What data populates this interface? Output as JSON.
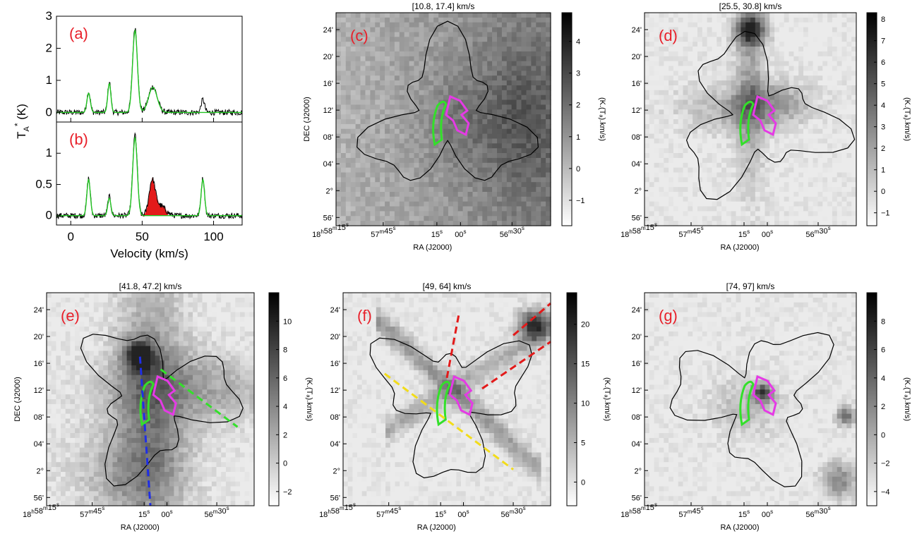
{
  "figure": {
    "panel_labels": [
      "(a)",
      "(b)",
      "(c)",
      "(d)",
      "(e)",
      "(f)",
      "(g)"
    ],
    "spectrum_ylabel": "T",
    "spectrum_ylabel_sub": "A",
    "spectrum_ylabel_sup": "*",
    "spectrum_ylabel_unit": "(K)",
    "spectrum_xlabel": "Velocity (km/s)",
    "ra_label": "RA (J2000)",
    "dec_label": "DEC (J2000)",
    "cbar_label": "(K.(Tₐ).km/s)",
    "ra_ticks": [
      "18h58m15s",
      "57m45s",
      "15s",
      "00s",
      "56m30s"
    ],
    "dec_ticks": [
      "24'",
      "20'",
      "16'",
      "12'",
      "08'",
      "04'",
      "2°",
      "56'"
    ]
  },
  "chart_data": [
    {
      "id": "a",
      "type": "line",
      "x_label": "Velocity (km/s)",
      "y_label": "TA* (K)",
      "xlim": [
        -10,
        120
      ],
      "ylim": [
        -0.3,
        3
      ],
      "x_ticks": [
        0,
        50,
        100
      ],
      "y_ticks": [
        0,
        1,
        2,
        3
      ],
      "series": [
        {
          "color": "#000000",
          "peaks": [
            {
              "v": 12.5,
              "amp": 0.65,
              "width": 1.2
            },
            {
              "v": 27.0,
              "amp": 0.95,
              "width": 1.1
            },
            {
              "v": 45.0,
              "amp": 2.65,
              "width": 1.7
            },
            {
              "v": 57.5,
              "amp": 0.8,
              "width": 3.0
            },
            {
              "v": 92.5,
              "amp": 0.4,
              "width": 1.2
            }
          ]
        },
        {
          "color": "#22c422",
          "peaks": [
            {
              "v": 12.5,
              "amp": 0.6,
              "width": 1.2
            },
            {
              "v": 27.0,
              "amp": 0.9,
              "width": 1.1
            },
            {
              "v": 45.0,
              "amp": 2.55,
              "width": 1.7
            },
            {
              "v": 57.5,
              "amp": 0.78,
              "width": 3.0
            }
          ]
        }
      ]
    },
    {
      "id": "b",
      "type": "line",
      "x_label": "Velocity (km/s)",
      "xlim": [
        -10,
        120
      ],
      "ylim": [
        -0.15,
        1.5
      ],
      "x_ticks": [
        0,
        50,
        100
      ],
      "y_ticks": [
        0,
        0.5,
        1
      ],
      "series": [
        {
          "color": "#000000",
          "peaks": [
            {
              "v": 12.5,
              "amp": 0.6,
              "width": 1.2
            },
            {
              "v": 27.0,
              "amp": 0.3,
              "width": 1.1
            },
            {
              "v": 45.0,
              "amp": 1.3,
              "width": 1.6
            },
            {
              "v": 57.0,
              "amp": 0.55,
              "width": 2.2
            },
            {
              "v": 63.0,
              "amp": 0.15,
              "width": 3.5
            },
            {
              "v": 92.5,
              "amp": 0.6,
              "width": 1.2
            }
          ]
        },
        {
          "color": "#22c422",
          "peaks": [
            {
              "v": 12.5,
              "amp": 0.58,
              "width": 1.2
            },
            {
              "v": 27.0,
              "amp": 0.28,
              "width": 1.1
            },
            {
              "v": 45.0,
              "amp": 1.25,
              "width": 1.6
            },
            {
              "v": 92.5,
              "amp": 0.58,
              "width": 1.2
            }
          ]
        }
      ],
      "shaded_range": [
        49,
        68
      ]
    },
    {
      "id": "c",
      "type": "heatmap",
      "title": "[10.8, 17.4] km/s",
      "cbar_ticks": [
        -1,
        0,
        1,
        2,
        3,
        4
      ],
      "cbar_range": [
        -1.8,
        4.9
      ]
    },
    {
      "id": "d",
      "type": "heatmap",
      "title": "[25.5, 30.8] km/s",
      "cbar_ticks": [
        -1,
        0,
        1,
        2,
        3,
        4,
        5,
        6,
        7,
        8
      ],
      "cbar_range": [
        -1.6,
        8.3
      ]
    },
    {
      "id": "e",
      "type": "heatmap",
      "title": "[41.8, 47.2] km/s",
      "cbar_ticks": [
        -2,
        0,
        2,
        4,
        6,
        8,
        10
      ],
      "cbar_range": [
        -3,
        12
      ]
    },
    {
      "id": "f",
      "type": "heatmap",
      "title": "[49, 64] km/s",
      "cbar_ticks": [
        0,
        5,
        10,
        15,
        20
      ],
      "cbar_range": [
        -3,
        24
      ]
    },
    {
      "id": "g",
      "type": "heatmap",
      "title": "[74, 97] km/s",
      "cbar_ticks": [
        -4,
        -2,
        0,
        2,
        4,
        6,
        8
      ],
      "cbar_range": [
        -5,
        10
      ]
    }
  ]
}
